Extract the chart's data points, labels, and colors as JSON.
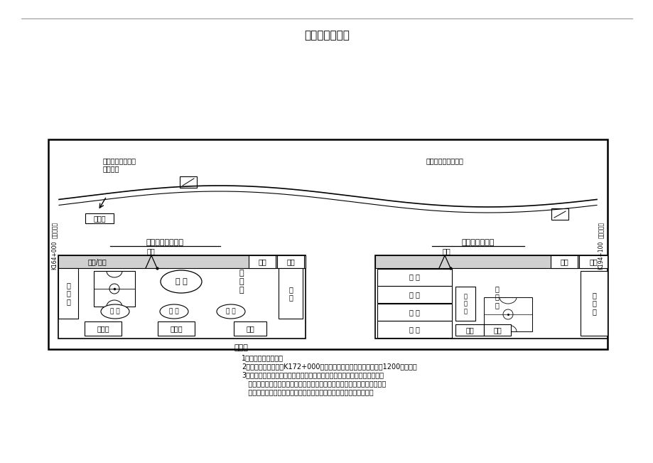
{
  "title": "施工平面布置图",
  "bg_color": "#ffffff",
  "road_label_left1": "本标段起点",
  "road_label_left2": "K164+000",
  "road_label_right1": "本标段终点",
  "road_label_right2": "K194+100",
  "road_text_left1": "路面、桥梁、涵洞",
  "road_text_left2": "等施工队",
  "road_text_right": "安全设施施工队营地",
  "arrow_label": "经理部",
  "left_layout_title": "项目经理部布局图",
  "right_layout_title": "施工营地布局图",
  "gateguard": "门卫",
  "notes_title": "说明：",
  "note1": "1、本图仅为示意图。",
  "note2": "2、项目经理部计划在K172+000右侧的空地相地建设，项目部占地1200平方米。",
  "note3": "3、施工营地四周采用塑钢围墙，并按规定的内容和标准进行装饰及标识以达",
  "note4": "   到与周围环境相协调，并保持整洁。项目经理部按文明项目经理部标准建成",
  "note5": "   花园式经理部。营地内住宿及办公用房一律使用双层活动板房搭建。"
}
